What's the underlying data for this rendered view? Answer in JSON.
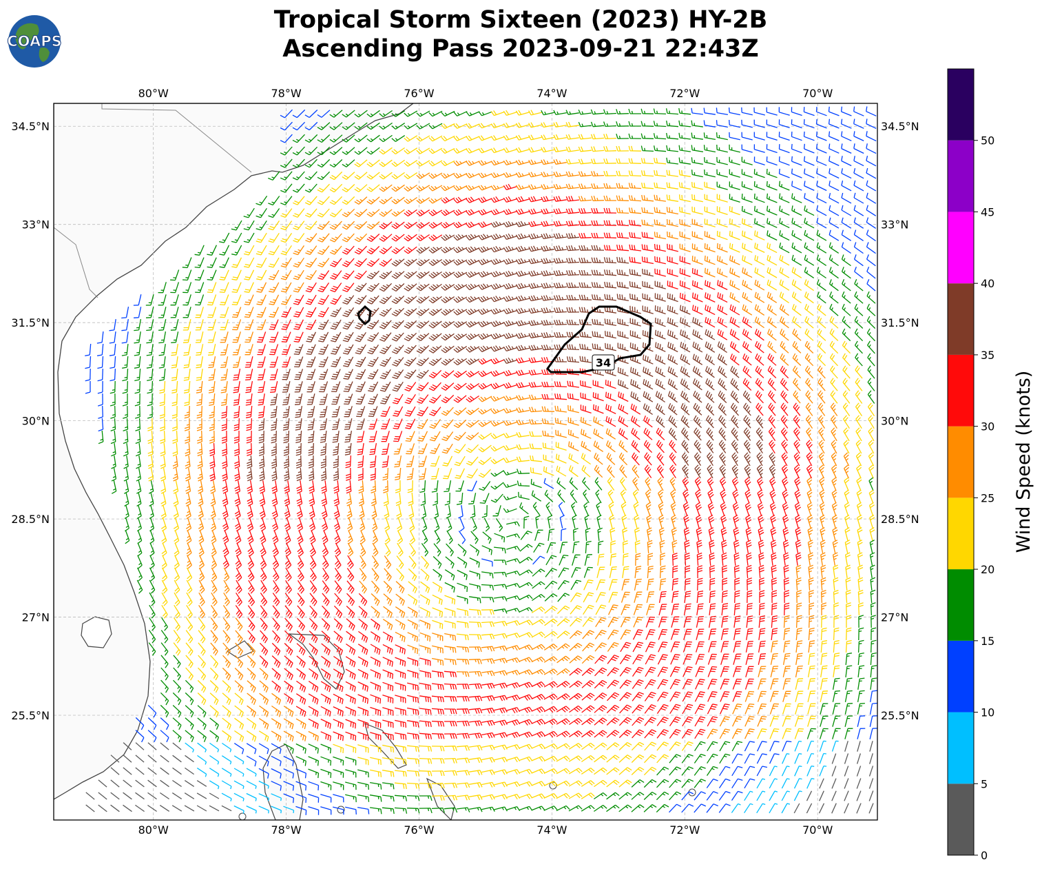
{
  "title": {
    "line1": "Tropical Storm Sixteen (2023) HY-2B",
    "line2": "Ascending Pass 2023-09-21 22:43Z"
  },
  "logo": {
    "text": "COAPS",
    "icon": "globe-logo-icon"
  },
  "map": {
    "lon_range": [
      -81.5,
      -69.1
    ],
    "lat_range": [
      23.9,
      34.85
    ],
    "lon_ticks": [
      "80°W",
      "78°W",
      "76°W",
      "74°W",
      "72°W",
      "70°W"
    ],
    "lat_ticks": [
      "34.5°N",
      "33°N",
      "31.5°N",
      "30°N",
      "28.5°N",
      "27°N",
      "25.5°N"
    ],
    "lon_tick_values": [
      -80,
      -78,
      -76,
      -74,
      -72,
      -70
    ],
    "lat_tick_values": [
      34.5,
      33,
      31.5,
      30,
      28.5,
      27,
      25.5
    ],
    "gridlines": true,
    "storm_center": {
      "lon": -74.6,
      "lat": 28.5
    },
    "contour_label": "34",
    "land_color": "#fafafa",
    "coast_color": "#444444"
  },
  "colorbar": {
    "label": "Wind Speed (knots)",
    "ticks": [
      "0",
      "5",
      "10",
      "15",
      "20",
      "25",
      "30",
      "35",
      "40",
      "45",
      "50"
    ],
    "bins": [
      {
        "min": 0,
        "max": 5,
        "color": "#5a5a5a"
      },
      {
        "min": 5,
        "max": 10,
        "color": "#00bfff"
      },
      {
        "min": 10,
        "max": 15,
        "color": "#0040ff"
      },
      {
        "min": 15,
        "max": 20,
        "color": "#008c00"
      },
      {
        "min": 20,
        "max": 25,
        "color": "#ffd700"
      },
      {
        "min": 25,
        "max": 30,
        "color": "#ff8c00"
      },
      {
        "min": 30,
        "max": 35,
        "color": "#ff0a0a"
      },
      {
        "min": 35,
        "max": 40,
        "color": "#7f3b28"
      },
      {
        "min": 40,
        "max": 45,
        "color": "#ff00ff"
      },
      {
        "min": 45,
        "max": 50,
        "color": "#8c00c8"
      },
      {
        "min": 50,
        "max": 55,
        "color": "#2a0060"
      }
    ]
  }
}
